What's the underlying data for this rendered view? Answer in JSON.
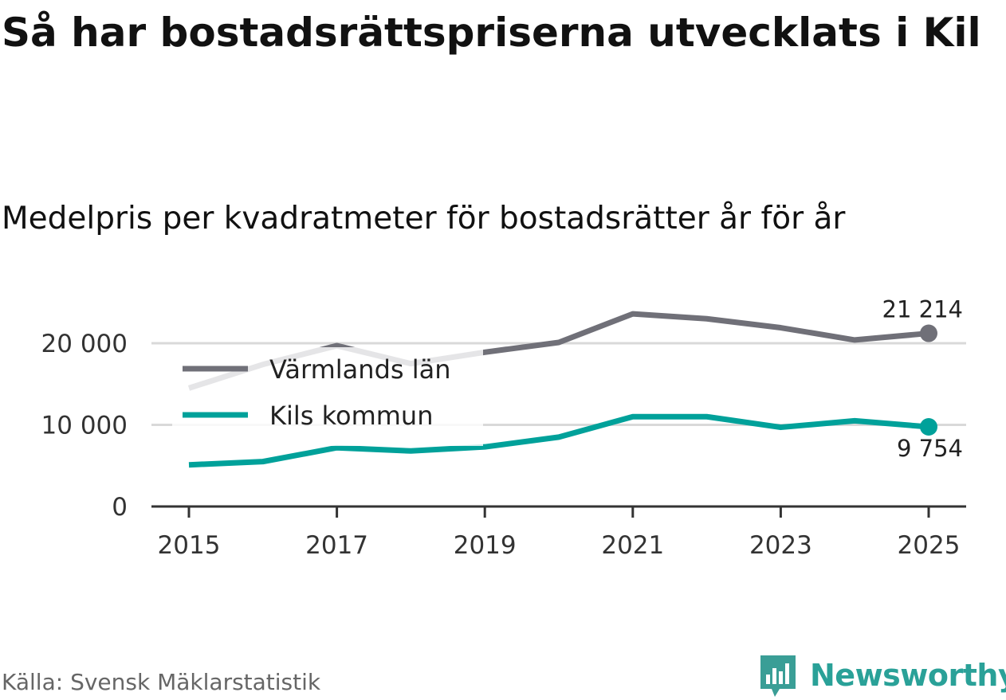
{
  "title": "Så har bostadsrättspriserna utvecklats i Kil",
  "subtitle": "Medelpris per kvadratmeter för bostadsrätter år för år",
  "source": "Källa: Svensk Mäklarstatistik",
  "brand": {
    "name": "Newsworthy",
    "icon": "newsworthy-logo-icon",
    "color": "#3a9e96"
  },
  "colors": {
    "lan": "#707078",
    "kommun": "#00a19a",
    "faded": "#e2e2e2",
    "grid": "#d9d9d9",
    "axis": "#333333"
  },
  "chart_data": {
    "type": "line",
    "title": "Så har bostadsrättspriserna utvecklats i Kil",
    "subtitle": "Medelpris per kvadratmeter för bostadsrätter år för år",
    "xlabel": "",
    "ylabel": "",
    "x": [
      2015,
      2016,
      2017,
      2018,
      2019,
      2020,
      2021,
      2022,
      2023,
      2024,
      2025
    ],
    "ylim": [
      0,
      23000
    ],
    "yticks": [
      0,
      10000,
      20000
    ],
    "ytick_labels": [
      "0",
      "10 000",
      "20 000"
    ],
    "xticks": [
      2015,
      2017,
      2019,
      2021,
      2023,
      2025
    ],
    "xtick_labels": [
      "2015",
      "2017",
      "2019",
      "2021",
      "2023",
      "2025"
    ],
    "grid": true,
    "legend_position": "top-left",
    "series": [
      {
        "name": "Värmlands län",
        "key": "lan",
        "values": [
          14500,
          17400,
          19700,
          17500,
          18900,
          20100,
          23600,
          23000,
          21900,
          20400,
          21214
        ],
        "end_label": "21 214"
      },
      {
        "name": "Kils kommun",
        "key": "kommun",
        "values": [
          5100,
          5500,
          7200,
          6800,
          7300,
          8500,
          11000,
          11000,
          9700,
          10500,
          9754
        ],
        "end_label": "9 754"
      }
    ]
  }
}
